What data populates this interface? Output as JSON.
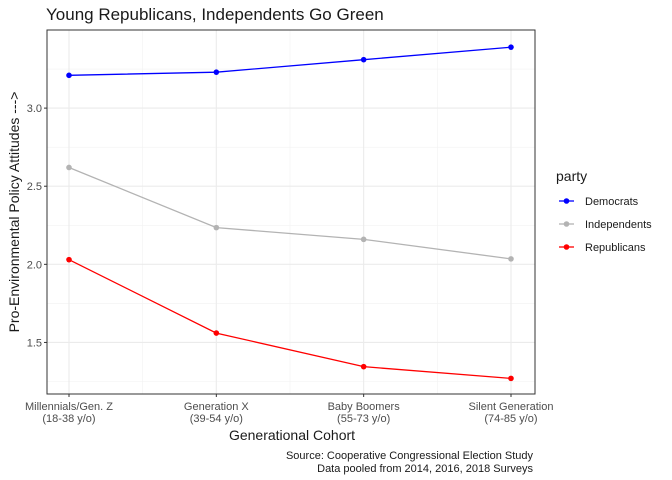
{
  "chart_data": {
    "type": "line",
    "title": "Young Republicans, Independents Go Green",
    "xlabel": "Generational Cohort",
    "ylabel": "Pro-Environmental Policy Attitudes --->",
    "categories": [
      [
        "Millennials/Gen. Z",
        "(18-38 y/o)"
      ],
      [
        "Generation X",
        "(39-54 y/o)"
      ],
      [
        "Baby Boomers",
        "(55-73 y/o)"
      ],
      [
        "Silent Generation",
        "(74-85 y/o)"
      ]
    ],
    "ylim": [
      1.17,
      3.5
    ],
    "yticks": [
      1.5,
      2.0,
      2.5,
      3.0
    ],
    "ytick_labels": [
      "1.5",
      "2.0",
      "2.5",
      "3.0"
    ],
    "grid": true,
    "legend": {
      "title": "party",
      "placement": "right"
    },
    "series": [
      {
        "name": "Democrats",
        "color": "#0000ff",
        "values": [
          3.21,
          3.23,
          3.31,
          3.39
        ]
      },
      {
        "name": "Independents",
        "color": "#b3b3b3",
        "values": [
          2.62,
          2.235,
          2.16,
          2.035
        ]
      },
      {
        "name": "Republicans",
        "color": "#ff0000",
        "values": [
          2.03,
          1.56,
          1.345,
          1.27
        ]
      }
    ],
    "caption": [
      "Source: Cooperative Congressional Election Study",
      "Data pooled  from 2014, 2016, 2018 Surveys"
    ]
  }
}
